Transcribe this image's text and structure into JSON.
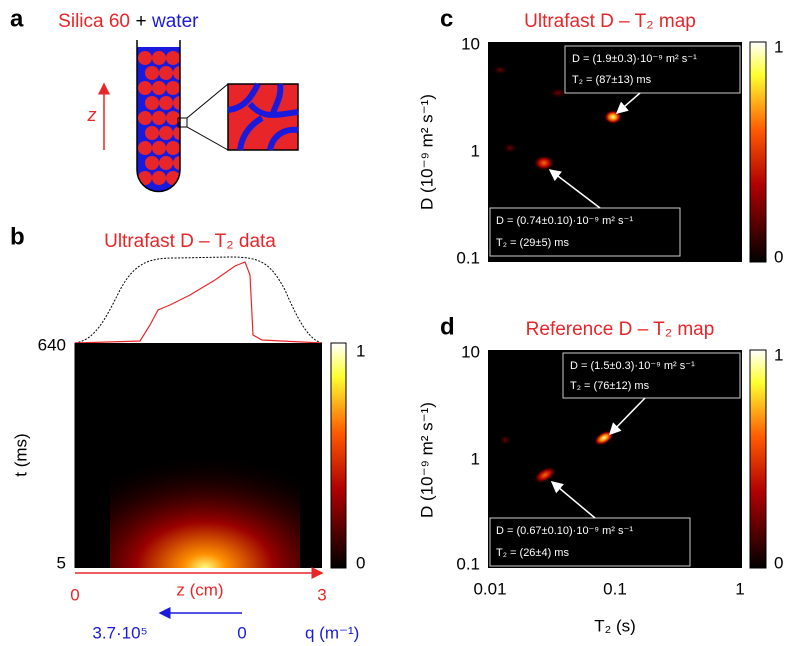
{
  "panel_a": {
    "letter": "a",
    "title_parts": [
      "Silica 60",
      "+",
      "water"
    ],
    "axis_label": "z"
  },
  "panel_b": {
    "letter": "b",
    "title": "Ultrafast D – T₂ data",
    "t_axis": {
      "label": "t (ms)",
      "ticks": [
        640,
        5
      ]
    },
    "z_axis": {
      "label": "z (cm)",
      "ticks": [
        0,
        3
      ]
    },
    "q_axis": {
      "label": "q (m⁻¹)",
      "ticks": [
        "3.7·10⁵",
        0
      ]
    },
    "colorbar_ticks": [
      1,
      0
    ]
  },
  "panel_c": {
    "letter": "c",
    "title": "Ultrafast D – T₂ map",
    "y_axis": {
      "label": "D (10⁻⁹ m² s⁻¹)",
      "ticks": [
        10,
        1,
        0.1
      ]
    },
    "colorbar_ticks": [
      1,
      0
    ],
    "annotations": [
      {
        "lines": [
          "D = (1.9±0.3)·10⁻⁹ m² s⁻¹",
          "T₂ = (87±13) ms"
        ]
      },
      {
        "lines": [
          "D = (0.74±0.10)·10⁻⁹ m² s⁻¹",
          "T₂ = (29±5) ms"
        ]
      }
    ]
  },
  "panel_d": {
    "letter": "d",
    "title": "Reference D – T₂ map",
    "y_axis": {
      "label": "D (10⁻⁹ m² s⁻¹)",
      "ticks": [
        10,
        1,
        0.1
      ]
    },
    "x_axis": {
      "label": "T₂ (s)",
      "ticks": [
        0.01,
        0.1,
        1
      ]
    },
    "colorbar_ticks": [
      1,
      0
    ],
    "annotations": [
      {
        "lines": [
          "D = (1.5±0.3)·10⁻⁹ m² s⁻¹",
          "T₂ = (76±12) ms"
        ]
      },
      {
        "lines": [
          "D = (0.67±0.10)·10⁻⁹ m² s⁻¹",
          "T₂ = (26±4) ms"
        ]
      }
    ]
  }
}
